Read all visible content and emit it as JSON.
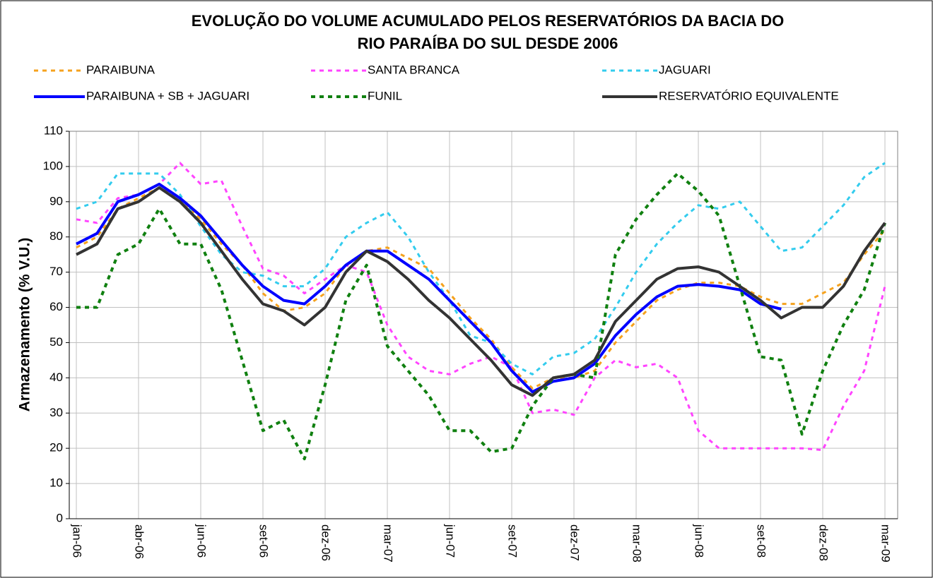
{
  "chart_data": {
    "type": "line",
    "title": [
      "EVOLUÇÃO DO VOLUME ACUMULADO PELOS RESERVATÓRIOS DA BACIA DO",
      "RIO PARAÍBA DO SUL DESDE 2006"
    ],
    "y_label": "Armazenamento (% V.U.)",
    "categories": [
      "jan-06",
      null,
      null,
      "abr-06",
      null,
      null,
      "jun-06",
      null,
      null,
      "set-06",
      null,
      null,
      "dez-06",
      null,
      null,
      "mar-07",
      null,
      null,
      "jun-07",
      null,
      null,
      "set-07",
      null,
      null,
      "dez-07",
      null,
      null,
      "mar-08",
      null,
      null,
      "jun-08",
      null,
      null,
      "set-08",
      null,
      null,
      "dez-08",
      null,
      null,
      "mar-09"
    ],
    "ylim": [
      0,
      110
    ],
    "yticks": [
      0,
      10,
      20,
      30,
      40,
      50,
      60,
      70,
      80,
      90,
      100,
      110
    ],
    "grid": true,
    "series": [
      {
        "name": "PARAIBUNA",
        "color": "#f5a21e",
        "style": "dashed",
        "width": 3,
        "values": [
          77,
          80,
          88,
          91,
          94,
          91,
          85,
          78,
          72,
          64,
          59,
          60,
          64,
          72,
          76,
          77,
          74,
          71,
          64,
          57,
          51,
          43,
          37,
          40,
          40,
          42,
          50,
          56,
          62,
          65,
          67,
          67,
          66,
          63,
          61,
          61,
          64,
          67,
          75,
          82
        ]
      },
      {
        "name": "SANTA BRANCA",
        "color": "#ff44ff",
        "style": "dashed",
        "width": 3,
        "values": [
          85,
          84,
          91,
          92,
          95,
          101,
          95,
          96,
          83,
          71,
          69,
          64,
          68,
          72,
          70,
          55,
          46,
          42,
          41,
          44,
          46,
          43,
          30,
          31,
          29.5,
          40,
          45,
          43,
          44,
          40,
          25,
          20,
          20,
          20,
          20,
          20,
          19.5,
          32,
          42,
          66
        ]
      },
      {
        "name": "JAGUARI",
        "color": "#33ccee",
        "style": "dashed",
        "width": 3,
        "values": [
          88,
          90,
          98,
          98,
          98,
          92,
          83,
          75,
          70,
          69,
          66,
          66,
          71,
          80,
          84,
          87,
          80,
          70,
          62,
          52,
          50,
          44,
          41,
          46,
          47,
          51,
          60,
          70,
          78,
          84,
          89,
          88,
          90,
          83,
          76,
          77,
          83,
          89,
          97,
          101
        ]
      },
      {
        "name": "PARAIBUNA + SB + JAGUARI",
        "color": "#0000ff",
        "style": "solid",
        "width": 4,
        "values": [
          78,
          81,
          90,
          92,
          95,
          91,
          86,
          79,
          72,
          66,
          62,
          61,
          66,
          72,
          76,
          76,
          72,
          68,
          62,
          56,
          50,
          42,
          36,
          39,
          40,
          44,
          52,
          58,
          63,
          66,
          66.5,
          66,
          65,
          61,
          59.5,
          null,
          null,
          null,
          null,
          null
        ]
      },
      {
        "name": "FUNIL",
        "color": "#108010",
        "style": "dashed",
        "width": 4,
        "values": [
          60,
          60,
          75,
          78,
          88,
          78,
          78,
          65,
          45,
          25,
          28,
          17,
          38,
          62,
          72,
          49,
          42,
          35,
          25,
          25,
          19,
          20,
          32,
          40,
          41,
          40,
          75,
          85,
          92,
          98,
          93,
          86,
          66,
          46,
          45,
          24,
          42,
          55,
          65,
          84
        ]
      },
      {
        "name": "RESERVATÓRIO EQUIVALENTE",
        "color": "#333333",
        "style": "solid",
        "width": 4,
        "values": [
          75,
          78,
          88,
          90,
          94,
          90,
          84,
          76,
          68,
          61,
          59,
          55,
          60,
          70,
          76,
          73,
          68,
          62,
          57,
          51,
          45,
          38,
          35,
          40,
          41,
          45,
          56,
          62,
          68,
          71,
          71.5,
          70,
          66,
          62,
          57,
          60,
          60,
          66,
          76,
          84
        ]
      }
    ]
  }
}
